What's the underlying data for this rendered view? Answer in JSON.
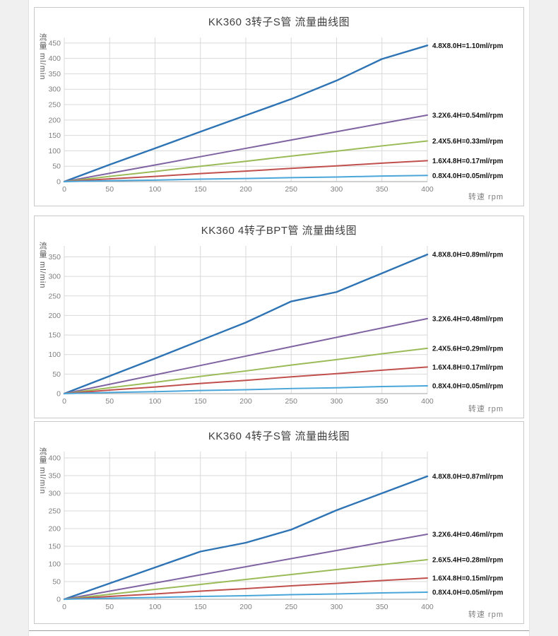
{
  "style": {
    "grid_color": "#d9d9d9",
    "axis_color": "#a0a0a0",
    "tick_color": "#7f7f7f",
    "series_label_color": "#141414"
  },
  "chart_data": [
    {
      "type": "line",
      "title": "KK360 3转子S管 流量曲线图",
      "xlabel": "转速 rpm",
      "ylabel": "流量 ml/min",
      "grid": true,
      "legend_position": "right-of-line-ends",
      "x": [
        0,
        50,
        100,
        150,
        200,
        250,
        300,
        350,
        400
      ],
      "xlim": [
        0,
        400
      ],
      "ylim": [
        0,
        468
      ],
      "yticks": [
        0,
        50,
        100,
        150,
        200,
        250,
        300,
        350,
        400,
        450
      ],
      "series": [
        {
          "name": "4.8X8.0H=1.10ml/rpm",
          "color": "#2e74b5",
          "values": [
            0,
            55,
            108,
            162,
            215,
            268,
            328,
            398,
            442
          ]
        },
        {
          "name": "3.2X6.4H=0.54ml/rpm",
          "color": "#8064a2",
          "values": [
            0,
            27,
            54,
            81,
            108,
            135,
            162,
            189,
            216
          ]
        },
        {
          "name": "2.4X5.6H=0.33ml/rpm",
          "color": "#9bbb59",
          "values": [
            0,
            17,
            33,
            50,
            66,
            83,
            99,
            116,
            132
          ]
        },
        {
          "name": "1.6X4.8H=0.17ml/rpm",
          "color": "#c0504d",
          "values": [
            0,
            9,
            17,
            26,
            34,
            43,
            51,
            60,
            68
          ]
        },
        {
          "name": "0.8X4.0H=0.05ml/rpm",
          "color": "#4aa5d8",
          "values": [
            0,
            3,
            5,
            8,
            10,
            13,
            15,
            18,
            20
          ]
        }
      ]
    },
    {
      "type": "line",
      "title": "KK360 4转子BPT管 流量曲线图",
      "xlabel": "转速 rpm",
      "ylabel": "流量 ml/min",
      "grid": true,
      "legend_position": "right-of-line-ends",
      "x": [
        0,
        50,
        100,
        150,
        200,
        250,
        300,
        350,
        400
      ],
      "xlim": [
        0,
        400
      ],
      "ylim": [
        0,
        378
      ],
      "yticks": [
        0,
        50,
        100,
        150,
        200,
        250,
        300,
        350
      ],
      "series": [
        {
          "name": "4.8X8.0H=0.89ml/rpm",
          "color": "#2e74b5",
          "values": [
            0,
            45,
            90,
            136,
            182,
            236,
            260,
            308,
            356
          ]
        },
        {
          "name": "3.2X6.4H=0.48ml/rpm",
          "color": "#8064a2",
          "values": [
            0,
            24,
            48,
            72,
            96,
            120,
            144,
            168,
            192
          ]
        },
        {
          "name": "2.4X5.6H=0.29ml/rpm",
          "color": "#9bbb59",
          "values": [
            0,
            15,
            29,
            44,
            58,
            73,
            87,
            102,
            116
          ]
        },
        {
          "name": "1.6X4.8H=0.17ml/rpm",
          "color": "#c0504d",
          "values": [
            0,
            9,
            17,
            26,
            34,
            43,
            51,
            60,
            68
          ]
        },
        {
          "name": "0.8X4.0H=0.05ml/rpm",
          "color": "#4aa5d8",
          "values": [
            0,
            3,
            5,
            8,
            10,
            13,
            15,
            18,
            20
          ]
        }
      ]
    },
    {
      "type": "line",
      "title": "KK360 4转子S管 流量曲线图",
      "xlabel": "转速 rpm",
      "ylabel": "流量 ml/min",
      "grid": true,
      "legend_position": "right-of-line-ends",
      "x": [
        0,
        50,
        100,
        150,
        200,
        250,
        300,
        350,
        400
      ],
      "xlim": [
        0,
        400
      ],
      "ylim": [
        0,
        418
      ],
      "yticks": [
        0,
        50,
        100,
        150,
        200,
        250,
        300,
        350,
        400
      ],
      "series": [
        {
          "name": "4.8X8.0H=0.87ml/rpm",
          "color": "#2e74b5",
          "values": [
            0,
            45,
            90,
            135,
            160,
            197,
            252,
            300,
            348
          ]
        },
        {
          "name": "3.2X6.4H=0.46ml/rpm",
          "color": "#8064a2",
          "values": [
            0,
            23,
            46,
            69,
            92,
            115,
            138,
            161,
            184
          ]
        },
        {
          "name": "2.6X5.4H=0.28ml/rpm",
          "color": "#9bbb59",
          "values": [
            0,
            14,
            28,
            42,
            56,
            70,
            84,
            98,
            112
          ]
        },
        {
          "name": "1.6X4.8H=0.15ml/rpm",
          "color": "#c0504d",
          "values": [
            0,
            8,
            15,
            23,
            30,
            38,
            45,
            53,
            60
          ]
        },
        {
          "name": "0.8X4.0H=0.05ml/rpm",
          "color": "#4aa5d8",
          "values": [
            0,
            3,
            5,
            8,
            10,
            13,
            15,
            18,
            20
          ]
        }
      ]
    }
  ]
}
